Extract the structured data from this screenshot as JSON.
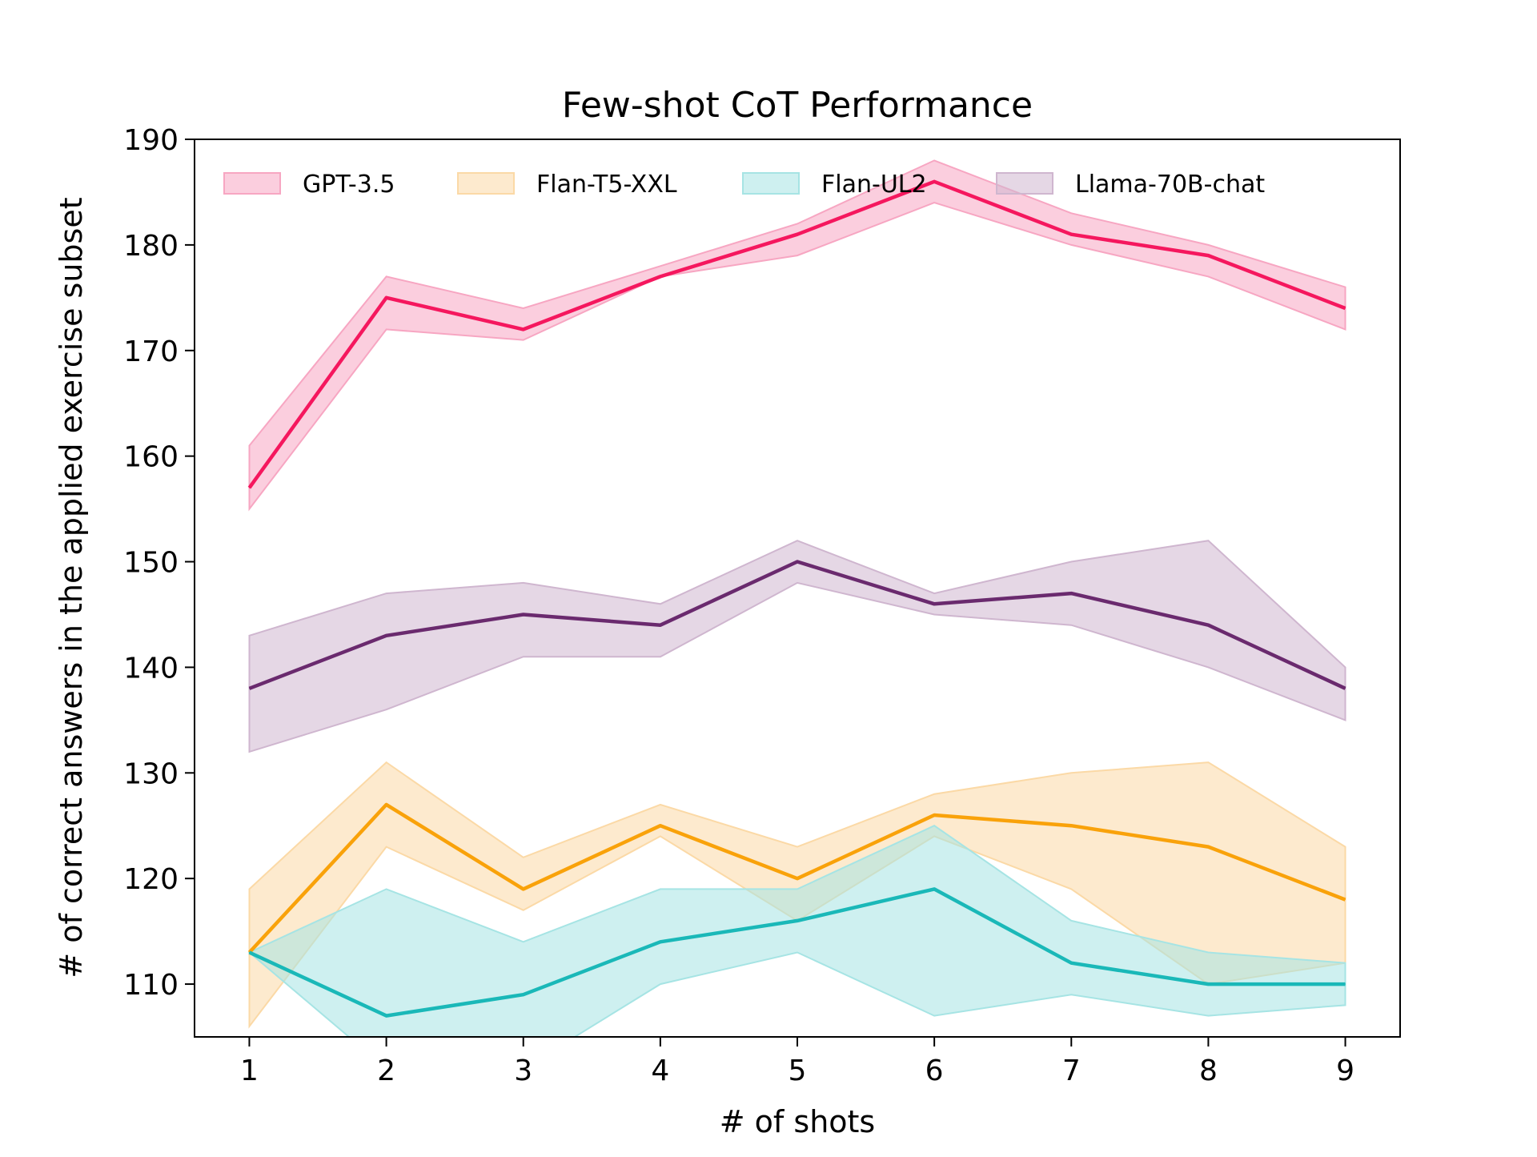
{
  "chart_data": {
    "type": "line",
    "title": "Few-shot CoT Performance",
    "xlabel": "# of shots",
    "ylabel": "# of correct answers in the applied exercise subset",
    "x": [
      1,
      2,
      3,
      4,
      5,
      6,
      7,
      8,
      9
    ],
    "xlim": [
      0.6,
      9.4
    ],
    "ylim": [
      105,
      190
    ],
    "xticks": [
      "1",
      "2",
      "3",
      "4",
      "5",
      "6",
      "7",
      "8",
      "9"
    ],
    "yticks": [
      "110",
      "120",
      "130",
      "140",
      "150",
      "160",
      "170",
      "180",
      "190"
    ],
    "grid": false,
    "legend_position": "top, horizontal",
    "series": [
      {
        "name": "GPT-3.5",
        "color": "#f5175e",
        "band_color": "#f7a6c2",
        "values": [
          157,
          175,
          172,
          177,
          181,
          186,
          181,
          179,
          174
        ],
        "lower": [
          155,
          172,
          171,
          177,
          179,
          184,
          180,
          177,
          172
        ],
        "upper": [
          161,
          177,
          174,
          178,
          182,
          188,
          183,
          180,
          176
        ]
      },
      {
        "name": "Flan-T5-XXL",
        "color": "#f9a20a",
        "band_color": "#fbd9a6",
        "values": [
          113,
          127,
          119,
          125,
          120,
          126,
          125,
          123,
          118
        ],
        "lower": [
          106,
          123,
          117,
          124,
          116,
          124,
          119,
          110,
          112
        ],
        "upper": [
          119,
          131,
          122,
          127,
          123,
          128,
          130,
          131,
          123
        ]
      },
      {
        "name": "Flan-UL2",
        "color": "#1ab8b8",
        "band_color": "#a6e4e4",
        "values": [
          113,
          107,
          109,
          114,
          116,
          119,
          112,
          110,
          110
        ],
        "lower": [
          113,
          102,
          102,
          110,
          113,
          107,
          109,
          107,
          108
        ],
        "upper": [
          113,
          119,
          114,
          119,
          119,
          125,
          116,
          113,
          112
        ]
      },
      {
        "name": "Llama-70B-chat",
        "color": "#6a2a6e",
        "band_color": "#cfb6cf",
        "values": [
          138,
          143,
          145,
          144,
          150,
          146,
          147,
          144,
          138
        ],
        "lower": [
          132,
          136,
          141,
          141,
          148,
          145,
          144,
          140,
          135
        ],
        "upper": [
          143,
          147,
          148,
          146,
          152,
          147,
          150,
          152,
          140
        ]
      }
    ]
  }
}
